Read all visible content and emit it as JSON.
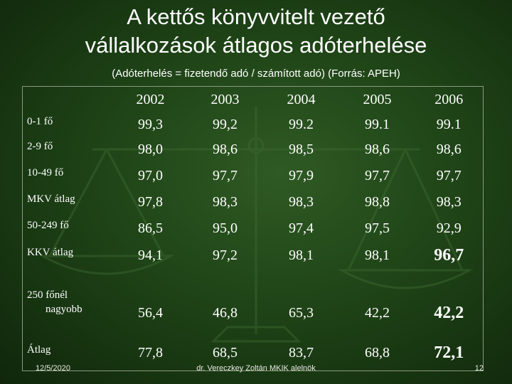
{
  "title_line1": "A kettős könyvvitelt vezető",
  "title_line2": "vállalkozások átlagos adóterhelése",
  "subtitle": "(Adóterhelés = fizetendő adó / számított adó) (Forrás: APEH)",
  "columns": [
    "2002",
    "2003",
    "2004",
    "2005",
    "2006"
  ],
  "rows": [
    {
      "label": "0-1 fő",
      "values": [
        "99,3",
        "99,2",
        "99.2",
        "99.1",
        "99.1"
      ]
    },
    {
      "label": "2-9 fő",
      "values": [
        "98,0",
        "98,6",
        "98,5",
        "98,6",
        "98,6"
      ]
    },
    {
      "label": "10-49 fő",
      "values": [
        "97,0",
        "97,7",
        "97,9",
        "97,7",
        "97,7"
      ]
    },
    {
      "label": "MKV átlag",
      "values": [
        "97,8",
        "98,3",
        "98,3",
        "98,8",
        "98,3"
      ]
    },
    {
      "label": "50-249 fő",
      "values": [
        "86,5",
        "95,0",
        "97,4",
        "97,5",
        "92,9"
      ]
    },
    {
      "label": "KKV átlag",
      "values": [
        "94,1",
        "97,2",
        "98,1",
        "98,1",
        "96,7"
      ]
    },
    {
      "label_line1": "250 főnél",
      "label_line2": "nagyobb",
      "values": [
        "56,4",
        "46,8",
        "65,3",
        "42,2",
        "42,2"
      ]
    },
    {
      "label": "Átlag",
      "values": [
        "77,8",
        "68,5",
        "83,7",
        "68,8",
        "72,1"
      ]
    }
  ],
  "footer": {
    "date": "12/5/2020",
    "author": "dr. Vereczkey Zoltán MKIK alelnök",
    "page": "12"
  },
  "colors": {
    "background_center": "#2f5a24",
    "background_edge": "#0f260b",
    "text": "#ffffff",
    "table_border": "#8b9a80"
  }
}
